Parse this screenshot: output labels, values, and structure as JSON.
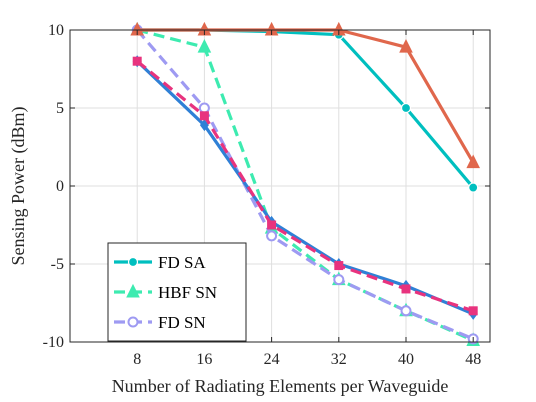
{
  "chart_data": {
    "type": "line",
    "title": "",
    "xlabel": "Number of Radiating Elements per Waveguide",
    "ylabel": "Sensing Power (dBm)",
    "x": [
      8,
      16,
      24,
      32,
      40,
      48
    ],
    "x_ticks": [
      8,
      16,
      24,
      32,
      40,
      48
    ],
    "x_tick_labels": [
      "8",
      "16",
      "24",
      "32",
      "40",
      "48"
    ],
    "xlim": [
      0,
      50
    ],
    "y_ticks": [
      -10,
      -5,
      0,
      5,
      10
    ],
    "y_tick_labels": [
      "-10",
      "-5",
      "0",
      "5",
      "10"
    ],
    "ylim": [
      -10,
      10
    ],
    "grid": true,
    "legend_position": "bottom-left",
    "series": [
      {
        "name": "FD SA",
        "color": "#00BFBF",
        "dash": "solid",
        "marker": "circle-filled",
        "values": [
          10,
          10,
          9.9,
          9.7,
          5.0,
          -0.1
        ],
        "in_legend": true
      },
      {
        "name": "HBF SN",
        "color": "#3DEBB0",
        "dash": "dashed",
        "marker": "triangle-filled",
        "values": [
          10,
          8.9,
          -2.7,
          -6.0,
          -8.0,
          -9.9
        ],
        "in_legend": true
      },
      {
        "name": "FD SN",
        "color": "#9E9AF2",
        "dash": "dashed",
        "marker": "circle-open",
        "values": [
          10,
          5.0,
          -3.2,
          -6.0,
          -8.0,
          -9.8
        ],
        "in_legend": true
      },
      {
        "color": "#E0674C",
        "dash": "solid",
        "marker": "triangle-filled",
        "values": [
          10,
          10,
          10,
          10,
          8.9,
          1.5
        ],
        "in_legend": false
      },
      {
        "color": "#2F80D6",
        "dash": "solid",
        "marker": "diamond-filled",
        "values": [
          8,
          3.9,
          -2.3,
          -5.0,
          -6.4,
          -8.2
        ],
        "in_legend": false
      },
      {
        "color": "#E8337E",
        "dash": "dashed",
        "marker": "square-filled",
        "values": [
          8,
          4.5,
          -2.5,
          -5.1,
          -6.6,
          -8.0
        ],
        "in_legend": false
      }
    ]
  }
}
